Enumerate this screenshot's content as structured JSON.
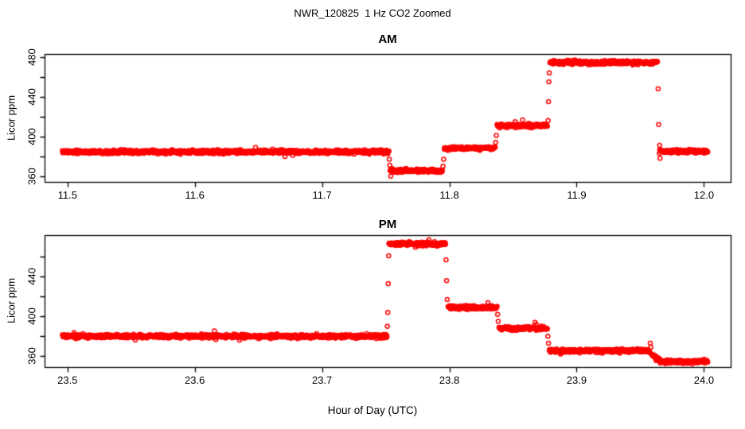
{
  "figure": {
    "title": "NWR_120825  1 Hz CO2 Zoomed",
    "xlabel": "Hour of Day (UTC)",
    "marker_color": "#ff0000",
    "text_color": "#000000",
    "background_color": "#ffffff"
  },
  "chart_data": [
    {
      "type": "scatter",
      "title": "AM",
      "ylabel": "Licor ppm",
      "xlabel": "Hour of Day (UTC)",
      "marker": "open-circle",
      "color": "#ff0000",
      "sample_rate_hz": 1,
      "grid": false,
      "legend": false,
      "xlim": [
        11.482,
        12.021
      ],
      "ylim": [
        354.2,
        483.0
      ],
      "x_ticks": [
        {
          "v": 11.5,
          "label": "11.5"
        },
        {
          "v": 11.6,
          "label": "11.6"
        },
        {
          "v": 11.7,
          "label": "11.7"
        },
        {
          "v": 11.8,
          "label": "11.8"
        },
        {
          "v": 11.9,
          "label": "11.9"
        },
        {
          "v": 12.0,
          "label": "12.0"
        }
      ],
      "y_ticks": [
        {
          "v": 360,
          "label": "360"
        },
        {
          "v": 380,
          "label": ""
        },
        {
          "v": 400,
          "label": "400"
        },
        {
          "v": 420,
          "label": ""
        },
        {
          "v": 440,
          "label": "440"
        },
        {
          "v": 460,
          "label": ""
        },
        {
          "v": 480,
          "label": "480"
        }
      ],
      "segments": [
        {
          "start": 11.496,
          "end": 11.7525,
          "ppm": 384.5
        },
        {
          "start": 11.7535,
          "end": 11.7945,
          "ppm": 365.5
        },
        {
          "start": 11.796,
          "end": 11.836,
          "ppm": 388.0
        },
        {
          "start": 11.8375,
          "end": 11.877,
          "ppm": 411.0
        },
        {
          "start": 11.879,
          "end": 11.9635,
          "ppm": 474.5
        },
        {
          "start": 11.965,
          "end": 12.003,
          "ppm": 385.0
        }
      ],
      "transition_points": [
        {
          "x": 11.7528,
          "y": 377
        },
        {
          "x": 11.7532,
          "y": 371
        },
        {
          "x": 11.754,
          "y": 360
        },
        {
          "x": 11.795,
          "y": 370
        },
        {
          "x": 11.7955,
          "y": 377
        },
        {
          "x": 11.8364,
          "y": 394
        },
        {
          "x": 11.8369,
          "y": 401
        },
        {
          "x": 11.8776,
          "y": 416
        },
        {
          "x": 11.8779,
          "y": 435
        },
        {
          "x": 11.8782,
          "y": 455
        },
        {
          "x": 11.8785,
          "y": 464
        },
        {
          "x": 11.964,
          "y": 448
        },
        {
          "x": 11.9644,
          "y": 412
        },
        {
          "x": 11.9652,
          "y": 391
        },
        {
          "x": 11.9655,
          "y": 378
        }
      ]
    },
    {
      "type": "scatter",
      "title": "PM",
      "ylabel": "Licor ppm",
      "xlabel": "Hour of Day (UTC)",
      "marker": "open-circle",
      "color": "#ff0000",
      "sample_rate_hz": 1,
      "grid": false,
      "legend": false,
      "xlim": [
        23.482,
        24.021
      ],
      "ylim": [
        349.0,
        481.8
      ],
      "x_ticks": [
        {
          "v": 23.5,
          "label": "23.5"
        },
        {
          "v": 23.6,
          "label": "23.6"
        },
        {
          "v": 23.7,
          "label": "23.7"
        },
        {
          "v": 23.8,
          "label": "23.8"
        },
        {
          "v": 23.9,
          "label": "23.9"
        },
        {
          "v": 24.0,
          "label": "24.0"
        }
      ],
      "y_ticks": [
        {
          "v": 360,
          "label": "360"
        },
        {
          "v": 380,
          "label": ""
        },
        {
          "v": 400,
          "label": "400"
        },
        {
          "v": 420,
          "label": ""
        },
        {
          "v": 440,
          "label": "440"
        },
        {
          "v": 460,
          "label": ""
        }
      ],
      "segments": [
        {
          "start": 23.496,
          "end": 23.751,
          "ppm": 380.0
        },
        {
          "start": 23.7525,
          "end": 23.797,
          "ppm": 473.0
        },
        {
          "start": 23.799,
          "end": 23.8375,
          "ppm": 409.0
        },
        {
          "start": 23.839,
          "end": 23.877,
          "ppm": 388.0
        },
        {
          "start": 23.8785,
          "end": 23.9575,
          "ppm": 365.5
        },
        {
          "start": 23.959,
          "end": 23.966,
          "ppm": 362.0,
          "ppm_end": 355.0
        },
        {
          "start": 23.966,
          "end": 24.003,
          "ppm": 354.5
        }
      ],
      "transition_points": [
        {
          "x": 23.7513,
          "y": 390
        },
        {
          "x": 23.7516,
          "y": 404
        },
        {
          "x": 23.752,
          "y": 433
        },
        {
          "x": 23.7523,
          "y": 461
        },
        {
          "x": 23.7974,
          "y": 457
        },
        {
          "x": 23.7978,
          "y": 436
        },
        {
          "x": 23.7983,
          "y": 417
        },
        {
          "x": 23.8379,
          "y": 402
        },
        {
          "x": 23.8384,
          "y": 395
        },
        {
          "x": 23.8774,
          "y": 380
        },
        {
          "x": 23.8779,
          "y": 373
        },
        {
          "x": 23.9578,
          "y": 373
        },
        {
          "x": 23.9583,
          "y": 369
        }
      ]
    }
  ]
}
